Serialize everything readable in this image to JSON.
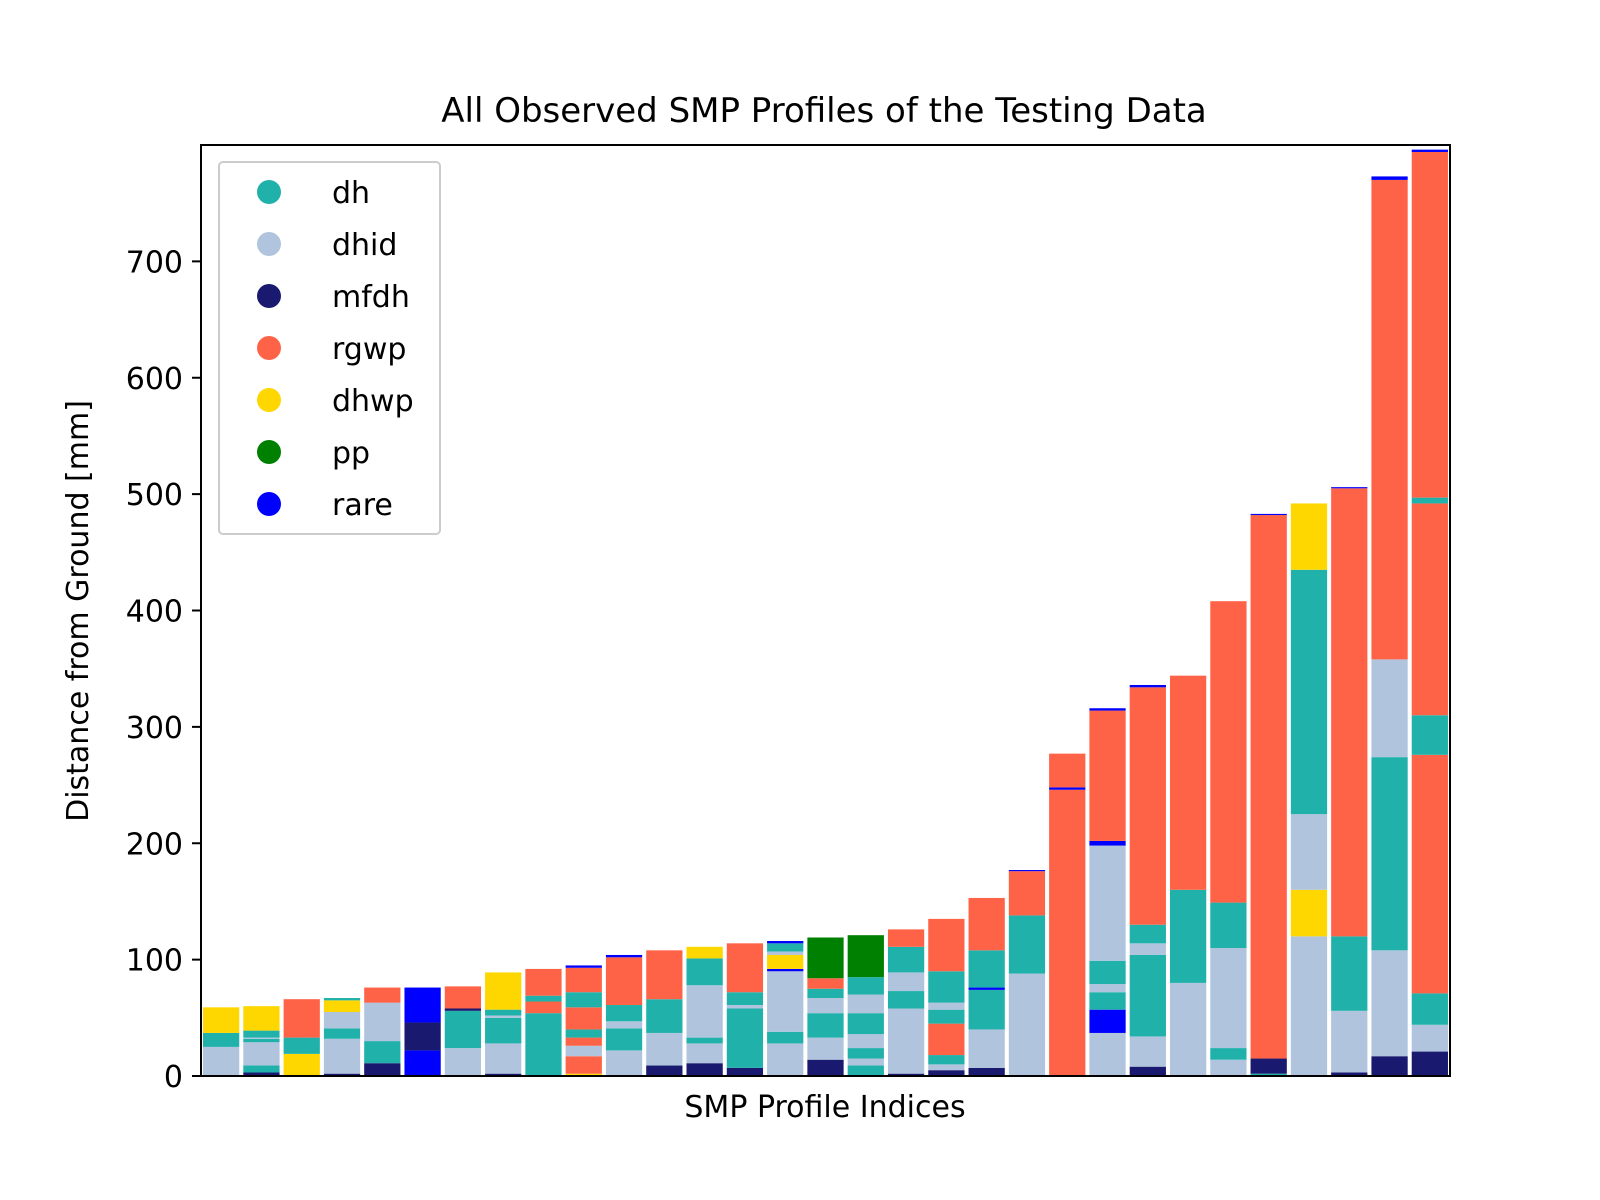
{
  "chart_data": {
    "type": "bar",
    "stacked": true,
    "title": "All Observed SMP Profiles of the Testing Data",
    "xlabel": "SMP Profile Indices",
    "ylabel": "Distance from Ground [mm]",
    "ylim": [
      0,
      800
    ],
    "yticks": [
      0,
      100,
      200,
      300,
      400,
      500,
      600,
      700
    ],
    "grid": false,
    "legend_position": "top-left",
    "legend": [
      {
        "name": "dh",
        "color": "#20b2aa"
      },
      {
        "name": "dhid",
        "color": "#b0c4de"
      },
      {
        "name": "mfdh",
        "color": "#191970"
      },
      {
        "name": "rgwp",
        "color": "#ff6347"
      },
      {
        "name": "dhwp",
        "color": "#ffd700"
      },
      {
        "name": "pp",
        "color": "#008000"
      },
      {
        "name": "rare",
        "color": "#0000ff"
      }
    ],
    "profiles": [
      {
        "segments": [
          {
            "label": "dhid",
            "from": 0,
            "to": 25
          },
          {
            "label": "dh",
            "from": 25,
            "to": 37
          },
          {
            "label": "dhwp",
            "from": 37,
            "to": 59
          }
        ]
      },
      {
        "segments": [
          {
            "label": "mfdh",
            "from": 0,
            "to": 3
          },
          {
            "label": "dh",
            "from": 3,
            "to": 9
          },
          {
            "label": "dhid",
            "from": 9,
            "to": 29
          },
          {
            "label": "dh",
            "from": 29,
            "to": 32
          },
          {
            "label": "dhid",
            "from": 32,
            "to": 33
          },
          {
            "label": "dh",
            "from": 33,
            "to": 39
          },
          {
            "label": "dhwp",
            "from": 39,
            "to": 60
          }
        ]
      },
      {
        "segments": [
          {
            "label": "dhwp",
            "from": 0,
            "to": 19
          },
          {
            "label": "dh",
            "from": 19,
            "to": 33
          },
          {
            "label": "rgwp",
            "from": 33,
            "to": 66
          }
        ]
      },
      {
        "segments": [
          {
            "label": "mfdh",
            "from": 0,
            "to": 2
          },
          {
            "label": "dhid",
            "from": 2,
            "to": 32
          },
          {
            "label": "dh",
            "from": 32,
            "to": 41
          },
          {
            "label": "dhid",
            "from": 41,
            "to": 55
          },
          {
            "label": "dhwp",
            "from": 55,
            "to": 65
          },
          {
            "label": "dh",
            "from": 65,
            "to": 67
          }
        ]
      },
      {
        "segments": [
          {
            "label": "mfdh",
            "from": 0,
            "to": 11
          },
          {
            "label": "dh",
            "from": 11,
            "to": 30
          },
          {
            "label": "dhid",
            "from": 30,
            "to": 63
          },
          {
            "label": "rgwp",
            "from": 63,
            "to": 76
          }
        ]
      },
      {
        "segments": [
          {
            "label": "rare",
            "from": 0,
            "to": 22
          },
          {
            "label": "mfdh",
            "from": 22,
            "to": 46
          },
          {
            "label": "rare",
            "from": 46,
            "to": 76
          }
        ]
      },
      {
        "segments": [
          {
            "label": "dhid",
            "from": 0,
            "to": 24
          },
          {
            "label": "dh",
            "from": 24,
            "to": 56
          },
          {
            "label": "mfdh",
            "from": 56,
            "to": 58
          },
          {
            "label": "rgwp",
            "from": 58,
            "to": 77
          }
        ]
      },
      {
        "segments": [
          {
            "label": "mfdh",
            "from": 0,
            "to": 2
          },
          {
            "label": "dhid",
            "from": 2,
            "to": 28
          },
          {
            "label": "dh",
            "from": 28,
            "to": 50
          },
          {
            "label": "dhid",
            "from": 50,
            "to": 52
          },
          {
            "label": "dh",
            "from": 52,
            "to": 57
          },
          {
            "label": "dhwp",
            "from": 57,
            "to": 89
          }
        ]
      },
      {
        "segments": [
          {
            "label": "dh",
            "from": 0,
            "to": 54
          },
          {
            "label": "rgwp",
            "from": 54,
            "to": 64
          },
          {
            "label": "dh",
            "from": 64,
            "to": 69
          },
          {
            "label": "rgwp",
            "from": 69,
            "to": 92
          }
        ]
      },
      {
        "segments": [
          {
            "label": "dhwp",
            "from": 0,
            "to": 2
          },
          {
            "label": "rgwp",
            "from": 2,
            "to": 17
          },
          {
            "label": "dhid",
            "from": 17,
            "to": 26
          },
          {
            "label": "rgwp",
            "from": 26,
            "to": 33
          },
          {
            "label": "dh",
            "from": 33,
            "to": 40
          },
          {
            "label": "rgwp",
            "from": 40,
            "to": 59
          },
          {
            "label": "dh",
            "from": 59,
            "to": 72
          },
          {
            "label": "rgwp",
            "from": 72,
            "to": 93
          },
          {
            "label": "rare",
            "from": 93,
            "to": 95
          }
        ]
      },
      {
        "segments": [
          {
            "label": "dhid",
            "from": 0,
            "to": 22
          },
          {
            "label": "dh",
            "from": 22,
            "to": 41
          },
          {
            "label": "dhid",
            "from": 41,
            "to": 47
          },
          {
            "label": "dh",
            "from": 47,
            "to": 61
          },
          {
            "label": "rgwp",
            "from": 61,
            "to": 102
          },
          {
            "label": "rare",
            "from": 102,
            "to": 104
          }
        ]
      },
      {
        "segments": [
          {
            "label": "mfdh",
            "from": 0,
            "to": 9
          },
          {
            "label": "dhid",
            "from": 9,
            "to": 37
          },
          {
            "label": "dh",
            "from": 37,
            "to": 66
          },
          {
            "label": "rgwp",
            "from": 66,
            "to": 108
          }
        ]
      },
      {
        "segments": [
          {
            "label": "mfdh",
            "from": 0,
            "to": 11
          },
          {
            "label": "dhid",
            "from": 11,
            "to": 28
          },
          {
            "label": "dh",
            "from": 28,
            "to": 33
          },
          {
            "label": "dhid",
            "from": 33,
            "to": 78
          },
          {
            "label": "dh",
            "from": 78,
            "to": 101
          },
          {
            "label": "dhwp",
            "from": 101,
            "to": 111
          }
        ]
      },
      {
        "segments": [
          {
            "label": "mfdh",
            "from": 0,
            "to": 7
          },
          {
            "label": "dh",
            "from": 7,
            "to": 58
          },
          {
            "label": "dhid",
            "from": 58,
            "to": 61
          },
          {
            "label": "dh",
            "from": 61,
            "to": 72
          },
          {
            "label": "rgwp",
            "from": 72,
            "to": 114
          }
        ]
      },
      {
        "segments": [
          {
            "label": "dhid",
            "from": 0,
            "to": 28
          },
          {
            "label": "dh",
            "from": 28,
            "to": 38
          },
          {
            "label": "dhid",
            "from": 38,
            "to": 90
          },
          {
            "label": "rare",
            "from": 90,
            "to": 92
          },
          {
            "label": "dhwp",
            "from": 92,
            "to": 104
          },
          {
            "label": "dhid",
            "from": 104,
            "to": 107
          },
          {
            "label": "dh",
            "from": 107,
            "to": 114
          },
          {
            "label": "rare",
            "from": 114,
            "to": 116
          }
        ]
      },
      {
        "segments": [
          {
            "label": "mfdh",
            "from": 0,
            "to": 14
          },
          {
            "label": "dhid",
            "from": 14,
            "to": 33
          },
          {
            "label": "dh",
            "from": 33,
            "to": 54
          },
          {
            "label": "dhid",
            "from": 54,
            "to": 67
          },
          {
            "label": "dh",
            "from": 67,
            "to": 75
          },
          {
            "label": "rgwp",
            "from": 75,
            "to": 84
          },
          {
            "label": "pp",
            "from": 84,
            "to": 119
          }
        ]
      },
      {
        "segments": [
          {
            "label": "dh",
            "from": 0,
            "to": 9
          },
          {
            "label": "dhid",
            "from": 9,
            "to": 15
          },
          {
            "label": "dh",
            "from": 15,
            "to": 24
          },
          {
            "label": "dhid",
            "from": 24,
            "to": 36
          },
          {
            "label": "dh",
            "from": 36,
            "to": 54
          },
          {
            "label": "dhid",
            "from": 54,
            "to": 70
          },
          {
            "label": "dh",
            "from": 70,
            "to": 85
          },
          {
            "label": "pp",
            "from": 85,
            "to": 121
          }
        ]
      },
      {
        "segments": [
          {
            "label": "mfdh",
            "from": 0,
            "to": 2
          },
          {
            "label": "dhid",
            "from": 2,
            "to": 58
          },
          {
            "label": "dh",
            "from": 58,
            "to": 73
          },
          {
            "label": "dhid",
            "from": 73,
            "to": 89
          },
          {
            "label": "dh",
            "from": 89,
            "to": 111
          },
          {
            "label": "rgwp",
            "from": 111,
            "to": 126
          }
        ]
      },
      {
        "segments": [
          {
            "label": "mfdh",
            "from": 0,
            "to": 5
          },
          {
            "label": "dhid",
            "from": 5,
            "to": 10
          },
          {
            "label": "dh",
            "from": 10,
            "to": 18
          },
          {
            "label": "rgwp",
            "from": 18,
            "to": 45
          },
          {
            "label": "dh",
            "from": 45,
            "to": 57
          },
          {
            "label": "dhid",
            "from": 57,
            "to": 63
          },
          {
            "label": "dh",
            "from": 63,
            "to": 90
          },
          {
            "label": "rgwp",
            "from": 90,
            "to": 135
          }
        ]
      },
      {
        "segments": [
          {
            "label": "mfdh",
            "from": 0,
            "to": 7
          },
          {
            "label": "dhid",
            "from": 7,
            "to": 40
          },
          {
            "label": "dh",
            "from": 40,
            "to": 74
          },
          {
            "label": "rare",
            "from": 74,
            "to": 76
          },
          {
            "label": "dh",
            "from": 76,
            "to": 108
          },
          {
            "label": "rgwp",
            "from": 108,
            "to": 153
          }
        ]
      },
      {
        "segments": [
          {
            "label": "dhid",
            "from": 0,
            "to": 88
          },
          {
            "label": "dh",
            "from": 88,
            "to": 138
          },
          {
            "label": "rgwp",
            "from": 138,
            "to": 176
          },
          {
            "label": "rare",
            "from": 176,
            "to": 177
          }
        ]
      },
      {
        "segments": [
          {
            "label": "rgwp",
            "from": 0,
            "to": 246
          },
          {
            "label": "rare",
            "from": 246,
            "to": 248
          },
          {
            "label": "rgwp",
            "from": 248,
            "to": 277
          }
        ]
      },
      {
        "segments": [
          {
            "label": "dhid",
            "from": 0,
            "to": 37
          },
          {
            "label": "rare",
            "from": 37,
            "to": 57
          },
          {
            "label": "dh",
            "from": 57,
            "to": 72
          },
          {
            "label": "dhid",
            "from": 72,
            "to": 79
          },
          {
            "label": "dh",
            "from": 79,
            "to": 99
          },
          {
            "label": "dhid",
            "from": 99,
            "to": 198
          },
          {
            "label": "rare",
            "from": 198,
            "to": 202
          },
          {
            "label": "rgwp",
            "from": 202,
            "to": 314
          },
          {
            "label": "rare",
            "from": 314,
            "to": 316
          }
        ]
      },
      {
        "segments": [
          {
            "label": "mfdh",
            "from": 0,
            "to": 8
          },
          {
            "label": "dhid",
            "from": 8,
            "to": 34
          },
          {
            "label": "dh",
            "from": 34,
            "to": 104
          },
          {
            "label": "dhid",
            "from": 104,
            "to": 114
          },
          {
            "label": "dh",
            "from": 114,
            "to": 130
          },
          {
            "label": "rgwp",
            "from": 130,
            "to": 334
          },
          {
            "label": "rare",
            "from": 334,
            "to": 336
          }
        ]
      },
      {
        "segments": [
          {
            "label": "dhid",
            "from": 0,
            "to": 80
          },
          {
            "label": "dh",
            "from": 80,
            "to": 160
          },
          {
            "label": "rgwp",
            "from": 160,
            "to": 344
          }
        ]
      },
      {
        "segments": [
          {
            "label": "dhid",
            "from": 0,
            "to": 14
          },
          {
            "label": "dh",
            "from": 14,
            "to": 24
          },
          {
            "label": "dhid",
            "from": 24,
            "to": 110
          },
          {
            "label": "dh",
            "from": 110,
            "to": 149
          },
          {
            "label": "rgwp",
            "from": 149,
            "to": 408
          }
        ]
      },
      {
        "segments": [
          {
            "label": "dh",
            "from": 0,
            "to": 2
          },
          {
            "label": "mfdh",
            "from": 2,
            "to": 15
          },
          {
            "label": "rgwp",
            "from": 15,
            "to": 482
          },
          {
            "label": "rare",
            "from": 482,
            "to": 483
          }
        ]
      },
      {
        "segments": [
          {
            "label": "dhid",
            "from": 0,
            "to": 120
          },
          {
            "label": "dhwp",
            "from": 120,
            "to": 160
          },
          {
            "label": "dhid",
            "from": 160,
            "to": 225
          },
          {
            "label": "dh",
            "from": 225,
            "to": 435
          },
          {
            "label": "dhwp",
            "from": 435,
            "to": 492
          }
        ]
      },
      {
        "segments": [
          {
            "label": "mfdh",
            "from": 0,
            "to": 3
          },
          {
            "label": "dhid",
            "from": 3,
            "to": 56
          },
          {
            "label": "dh",
            "from": 56,
            "to": 120
          },
          {
            "label": "rgwp",
            "from": 120,
            "to": 505
          },
          {
            "label": "rare",
            "from": 505,
            "to": 506
          }
        ]
      },
      {
        "segments": [
          {
            "label": "mfdh",
            "from": 0,
            "to": 17
          },
          {
            "label": "dhid",
            "from": 17,
            "to": 108
          },
          {
            "label": "dh",
            "from": 108,
            "to": 274
          },
          {
            "label": "dhid",
            "from": 274,
            "to": 358
          },
          {
            "label": "rgwp",
            "from": 358,
            "to": 770
          },
          {
            "label": "rare",
            "from": 770,
            "to": 773
          }
        ]
      },
      {
        "segments": [
          {
            "label": "mfdh",
            "from": 0,
            "to": 21
          },
          {
            "label": "dhid",
            "from": 21,
            "to": 44
          },
          {
            "label": "dh",
            "from": 44,
            "to": 71
          },
          {
            "label": "rgwp",
            "from": 71,
            "to": 276
          },
          {
            "label": "dh",
            "from": 276,
            "to": 310
          },
          {
            "label": "rgwp",
            "from": 310,
            "to": 492
          },
          {
            "label": "dh",
            "from": 492,
            "to": 497
          },
          {
            "label": "rgwp",
            "from": 497,
            "to": 794
          },
          {
            "label": "rare",
            "from": 794,
            "to": 796
          }
        ]
      }
    ]
  }
}
